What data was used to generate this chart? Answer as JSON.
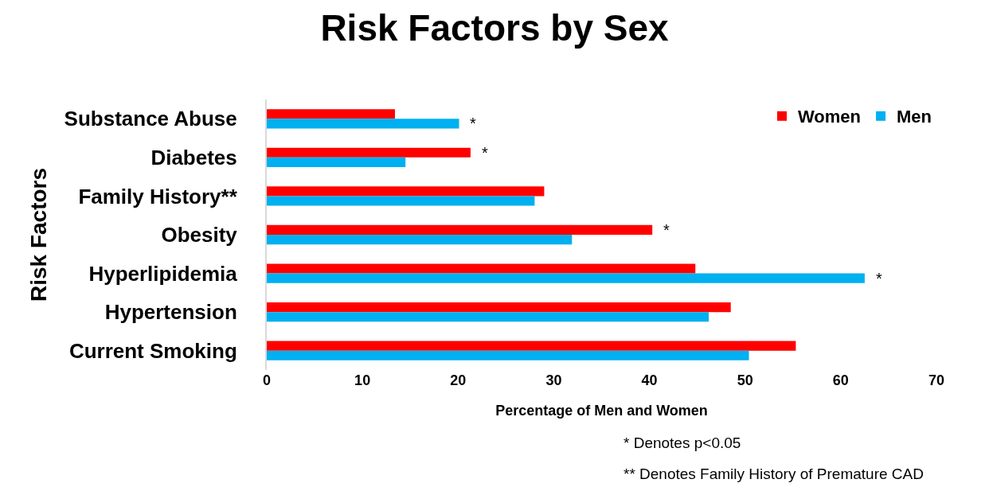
{
  "chart_data": {
    "type": "bar",
    "orientation": "horizontal",
    "title": "Risk Factors by Sex",
    "xlabel": "Percentage of Men and Women",
    "ylabel": "Risk Factors",
    "categories": [
      "Substance Abuse",
      "Diabetes",
      "Family History**",
      "Obesity",
      "Hyperlipidemia",
      "Hypertension",
      "Current Smoking"
    ],
    "series": [
      {
        "name": "Women",
        "color": "#ff0000",
        "values": [
          13.4,
          21.3,
          29.0,
          40.3,
          44.8,
          48.5,
          55.3
        ]
      },
      {
        "name": "Men",
        "color": "#00b0f0",
        "values": [
          20.1,
          14.5,
          28.0,
          31.9,
          62.5,
          46.2,
          50.4
        ]
      }
    ],
    "xlim": [
      0,
      70
    ],
    "xticks": [
      0,
      10,
      20,
      30,
      40,
      50,
      60,
      70
    ],
    "grid": false,
    "legend": "top right",
    "annotations": [
      {
        "text": "*",
        "x": 20.1,
        "y": "Substance Abuse"
      },
      {
        "text": "*",
        "x": 21.3,
        "y": "Diabetes"
      },
      {
        "text": "*",
        "x": 40.3,
        "y": "Obesity"
      },
      {
        "text": "*",
        "x": 62.5,
        "y": "Hyperlipidemia"
      },
      "* Denotes p<0.05",
      "** Denotes Family History of Premature CAD"
    ]
  }
}
